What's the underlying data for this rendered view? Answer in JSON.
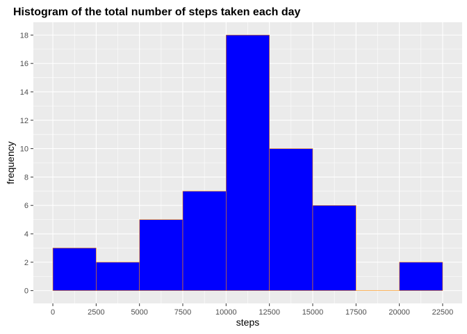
{
  "chart_data": {
    "type": "bar",
    "title": "Histogram of the total number of steps taken each day",
    "xlabel": "steps",
    "ylabel": "frequency",
    "bin_edges": [
      0,
      2500,
      5000,
      7500,
      10000,
      12500,
      15000,
      17500,
      20000,
      22500
    ],
    "values": [
      3,
      2,
      5,
      7,
      18,
      10,
      6,
      0,
      2
    ],
    "xlim": [
      -1125,
      23625
    ],
    "ylim": [
      -0.9,
      18.9
    ],
    "x_ticks": [
      0,
      2500,
      5000,
      7500,
      10000,
      12500,
      15000,
      17500,
      20000,
      22500
    ],
    "y_ticks": [
      0,
      2,
      4,
      6,
      8,
      10,
      12,
      14,
      16,
      18
    ],
    "grid": true,
    "colors": {
      "fill": "#0000ff",
      "outline": "#ff8c00",
      "panel_background": "#ebebeb",
      "grid": "#ffffff"
    }
  }
}
